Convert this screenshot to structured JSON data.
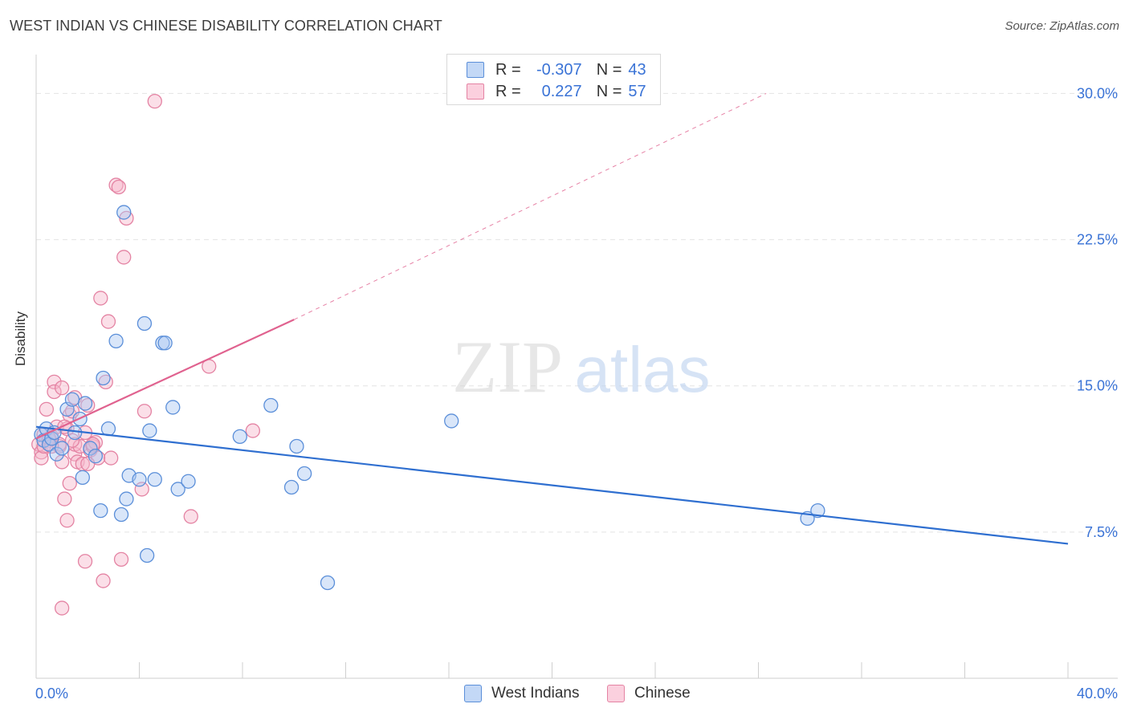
{
  "title": "WEST INDIAN VS CHINESE DISABILITY CORRELATION CHART",
  "source": "Source: ZipAtlas.com",
  "watermark": {
    "zip": "ZIP",
    "atlas": "atlas"
  },
  "legend": {
    "rows": [
      {
        "r_label": "R =",
        "r_value": "-0.307",
        "n_label": "N =",
        "n_value": "43"
      },
      {
        "r_label": "R =",
        "r_value": "0.227",
        "n_label": "N =",
        "n_value": "57"
      }
    ]
  },
  "bottom_legend": [
    "West Indians",
    "Chinese"
  ],
  "colors": {
    "west_indians_fill": "#aac8f2",
    "west_indians_stroke": "#5b8fd9",
    "west_indians_line": "#2f6fd0",
    "chinese_fill": "#f7b8cc",
    "chinese_stroke": "#e483a3",
    "chinese_line": "#e0628f",
    "tick_text": "#3a73d6",
    "grid": "#e4e4e4"
  },
  "chart_data": {
    "type": "scatter",
    "title": "WEST INDIAN VS CHINESE DISABILITY CORRELATION CHART",
    "xlabel": "",
    "ylabel": "Disability",
    "xlim": [
      0,
      40
    ],
    "ylim": [
      0,
      31.5
    ],
    "x_tick_labels": [
      "0.0%",
      "40.0%"
    ],
    "y_ticks": [
      7.5,
      15.0,
      22.5,
      30.0
    ],
    "y_tick_labels": [
      "7.5%",
      "15.0%",
      "22.5%",
      "30.0%"
    ],
    "grid": true,
    "legend_position": "top-center",
    "series": [
      {
        "name": "West Indians",
        "r": -0.307,
        "n": 43,
        "trend": {
          "x": [
            0,
            40
          ],
          "y": [
            12.9,
            6.9
          ],
          "dashed_extension": false
        },
        "points": [
          [
            0.2,
            12.5
          ],
          [
            0.3,
            12.2
          ],
          [
            0.4,
            12.8
          ],
          [
            0.5,
            12.0
          ],
          [
            0.6,
            12.3
          ],
          [
            0.7,
            12.6
          ],
          [
            0.8,
            11.5
          ],
          [
            1.0,
            11.8
          ],
          [
            1.2,
            13.8
          ],
          [
            1.4,
            14.3
          ],
          [
            1.5,
            12.6
          ],
          [
            1.7,
            13.3
          ],
          [
            1.9,
            14.1
          ],
          [
            2.1,
            11.8
          ],
          [
            2.3,
            11.4
          ],
          [
            2.5,
            8.6
          ],
          [
            1.8,
            10.3
          ],
          [
            2.8,
            12.8
          ],
          [
            3.1,
            17.3
          ],
          [
            3.3,
            8.4
          ],
          [
            3.4,
            23.9
          ],
          [
            3.5,
            9.2
          ],
          [
            3.6,
            10.4
          ],
          [
            4.0,
            10.2
          ],
          [
            4.2,
            18.2
          ],
          [
            4.3,
            6.3
          ],
          [
            4.4,
            12.7
          ],
          [
            4.6,
            10.2
          ],
          [
            4.9,
            17.2
          ],
          [
            5.0,
            17.2
          ],
          [
            5.3,
            13.9
          ],
          [
            5.5,
            9.7
          ],
          [
            5.9,
            10.1
          ],
          [
            2.6,
            15.4
          ],
          [
            7.9,
            12.4
          ],
          [
            9.1,
            14.0
          ],
          [
            9.9,
            9.8
          ],
          [
            10.1,
            11.9
          ],
          [
            10.4,
            10.5
          ],
          [
            11.3,
            4.9
          ],
          [
            16.1,
            13.2
          ],
          [
            29.9,
            8.2
          ],
          [
            30.3,
            8.6
          ]
        ]
      },
      {
        "name": "Chinese",
        "r": 0.227,
        "n": 57,
        "trend": {
          "x": [
            0,
            10
          ],
          "y": [
            12.3,
            18.4
          ],
          "dashed_extension": true,
          "dashed_to": [
            28.3,
            30.0
          ]
        },
        "points": [
          [
            0.1,
            12.0
          ],
          [
            0.2,
            11.6
          ],
          [
            0.2,
            11.3
          ],
          [
            0.3,
            12.5
          ],
          [
            0.4,
            13.8
          ],
          [
            0.5,
            12.2
          ],
          [
            0.6,
            12.4
          ],
          [
            0.7,
            15.2
          ],
          [
            0.7,
            14.7
          ],
          [
            0.8,
            12.9
          ],
          [
            0.9,
            11.9
          ],
          [
            1.0,
            14.9
          ],
          [
            1.0,
            11.1
          ],
          [
            1.1,
            9.2
          ],
          [
            1.2,
            12.8
          ],
          [
            1.3,
            13.5
          ],
          [
            1.4,
            13.7
          ],
          [
            1.5,
            11.5
          ],
          [
            1.5,
            12.0
          ],
          [
            1.6,
            11.1
          ],
          [
            1.7,
            11.9
          ],
          [
            1.8,
            11.0
          ],
          [
            1.9,
            12.6
          ],
          [
            1.3,
            10.0
          ],
          [
            1.2,
            8.1
          ],
          [
            1.5,
            14.4
          ],
          [
            2.0,
            14.0
          ],
          [
            2.1,
            11.7
          ],
          [
            2.2,
            11.9
          ],
          [
            2.3,
            12.1
          ],
          [
            2.4,
            11.3
          ],
          [
            2.5,
            19.5
          ],
          [
            2.6,
            5.0
          ],
          [
            1.9,
            6.0
          ],
          [
            2.0,
            11.0
          ],
          [
            2.8,
            18.3
          ],
          [
            2.9,
            11.3
          ],
          [
            2.7,
            15.2
          ],
          [
            3.1,
            25.3
          ],
          [
            3.2,
            25.2
          ],
          [
            3.3,
            6.1
          ],
          [
            3.4,
            21.6
          ],
          [
            3.5,
            23.6
          ],
          [
            4.1,
            9.7
          ],
          [
            4.2,
            13.7
          ],
          [
            4.6,
            29.6
          ],
          [
            6.0,
            8.3
          ],
          [
            6.7,
            16.0
          ],
          [
            8.4,
            12.7
          ],
          [
            1.0,
            3.6
          ],
          [
            0.9,
            12.0
          ],
          [
            1.1,
            12.9
          ],
          [
            0.3,
            11.9
          ],
          [
            0.5,
            12.3
          ],
          [
            1.4,
            12.2
          ],
          [
            2.2,
            12.0
          ],
          [
            0.6,
            11.9
          ]
        ]
      }
    ]
  }
}
